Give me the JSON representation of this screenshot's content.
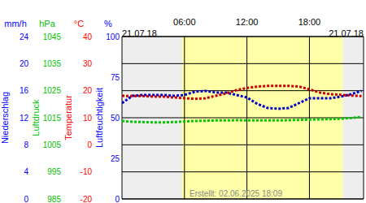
{
  "chart_data": {
    "type": "line",
    "dates": [
      "21.07.18",
      "21.07.18"
    ],
    "annotations": [
      "Erstellt: 02.06.2025 18:09"
    ],
    "x": [
      0,
      1,
      2,
      3,
      4,
      5,
      6,
      7,
      8,
      9,
      10,
      11,
      12,
      13,
      14,
      15,
      16,
      17,
      18,
      19,
      20,
      21,
      22,
      23
    ],
    "xlim": [
      0,
      23.2
    ],
    "xticks": [
      {
        "value": 6,
        "label": "06:00"
      },
      {
        "value": 12,
        "label": "12:00"
      },
      {
        "value": 18,
        "label": "18:00"
      }
    ],
    "daylight": [
      5.75,
      21.2
    ],
    "grid": true,
    "axes": [
      {
        "unit": "%",
        "label": "Luftfeuchtigkeit",
        "color": "#0000ff",
        "ylim": [
          0,
          100
        ],
        "yticks": [
          0,
          25,
          50,
          75,
          100
        ]
      },
      {
        "unit": "°C",
        "label": "Temperatur",
        "color": "#ff0000",
        "ylim": [
          -20,
          40
        ],
        "yticks": [
          -20,
          -10,
          0,
          10,
          20,
          30,
          40
        ]
      },
      {
        "unit": "hPa",
        "label": "Luftdruck",
        "color": "#00c000",
        "ylim": [
          985,
          1045
        ],
        "yticks": [
          985,
          995,
          1005,
          1015,
          1025,
          1035,
          1045
        ]
      },
      {
        "unit": "mm/h",
        "label": "Niederschlag",
        "color": "#0000ff",
        "ylim": [
          0,
          24
        ],
        "yticks": [
          0,
          4,
          8,
          12,
          16,
          20,
          24
        ]
      }
    ],
    "series": [
      {
        "axis": "%",
        "color": "#0000c8",
        "line_style": "dotted",
        "values": [
          59,
          63.5,
          64,
          64,
          64,
          63.5,
          64,
          66,
          66.5,
          65.5,
          65.5,
          64,
          62.5,
          58.5,
          56,
          55.5,
          56,
          59,
          62,
          62,
          62,
          63,
          64.5,
          66.5
        ]
      },
      {
        "axis": "°C",
        "color": "#c80000",
        "line_style": "dotted",
        "values": [
          18.1,
          18,
          18,
          17.8,
          17.8,
          17.5,
          17.2,
          17,
          17.2,
          18.1,
          19,
          20.2,
          21,
          21.5,
          21.8,
          21.8,
          21.8,
          21.5,
          20.5,
          19.3,
          18.7,
          18.5,
          18.2,
          18
        ]
      },
      {
        "axis": "hPa",
        "color": "#00c800",
        "line_style": "dotted",
        "values": [
          1013.8,
          1013.5,
          1013.4,
          1013.3,
          1013.3,
          1013.4,
          1013.6,
          1013.8,
          1013.9,
          1014,
          1014,
          1014.1,
          1014,
          1014,
          1014,
          1014,
          1014.1,
          1014.2,
          1014.3,
          1014.4,
          1014.5,
          1014.6,
          1014.9,
          1015.3
        ]
      }
    ]
  }
}
